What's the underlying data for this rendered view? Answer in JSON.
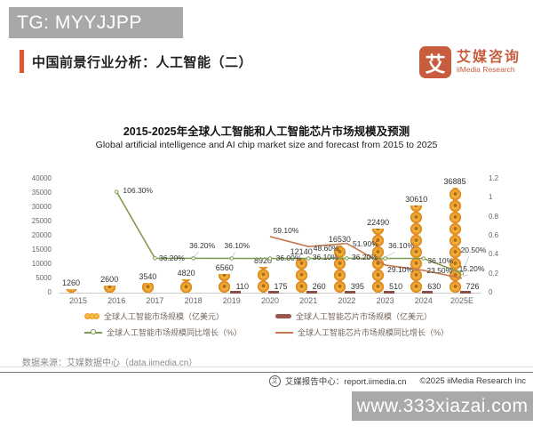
{
  "badge": {
    "text": "TG: MYYJJPP"
  },
  "header": {
    "title": "中国前景行业分析：人工智能（二）",
    "accent_color": "#e0552b",
    "logo": {
      "glyph": "艾",
      "brand_cn": "艾媒咨询",
      "brand_en": "iiMedia Research",
      "brand_color": "#c75d3e"
    }
  },
  "chart": {
    "title": "2015-2025年全球人工智能和人工智能芯片市场规模及预测",
    "subtitle": "Global artificial intelligence and AI chip market size and forecast from 2015 to 2025"
  },
  "chart_data": {
    "type": "combo: pictogram-bar + bar + 2 lines",
    "categories": [
      "2015",
      "2016",
      "2017",
      "2018",
      "2019",
      "2020",
      "2021",
      "2022",
      "2023",
      "2024",
      "2025E"
    ],
    "series": [
      {
        "name": "全球人工智能市场规模（亿美元）",
        "type": "pictogram-bar",
        "axis": "left",
        "color": "#f0a330",
        "values": [
          1260,
          2600,
          3540,
          4820,
          6560,
          8920,
          12140,
          16530,
          22490,
          30610,
          36885
        ]
      },
      {
        "name": "全球人工智能芯片市场规模（亿美元）",
        "type": "bar",
        "axis": "left",
        "color": "#8a4f47",
        "values": [
          null,
          null,
          null,
          null,
          110,
          175,
          260,
          395,
          510,
          630,
          726
        ]
      },
      {
        "name": "全球人工智能市场规模同比增长（%）",
        "type": "line",
        "axis": "right",
        "color": "#7f9c52",
        "values": [
          null,
          106.3,
          36.2,
          36.2,
          36.1,
          36.0,
          36.1,
          36.2,
          36.1,
          36.1,
          20.5
        ]
      },
      {
        "name": "全球人工智能芯片市场规模同比增长（%）",
        "type": "line",
        "axis": "right",
        "color": "#c4794f",
        "values": [
          null,
          null,
          null,
          null,
          null,
          59.1,
          48.6,
          51.9,
          29.1,
          23.5,
          15.2
        ]
      }
    ],
    "left_axis": {
      "min": 0,
      "max": 40000,
      "ticks": [
        "40000",
        "35000",
        "30000",
        "25000",
        "20000",
        "15000",
        "10000",
        "5000",
        "0"
      ]
    },
    "right_axis": {
      "min": 0,
      "max": 1.2,
      "ticks": [
        "1.2",
        "1",
        "0.8",
        "0.6",
        "0.4",
        "0.2",
        "0"
      ]
    },
    "grid": false,
    "legend_position": "bottom"
  },
  "legend": [
    {
      "label": "全球人工智能市场规模（亿美元）",
      "marker": "pictogram",
      "color": "#f0a330"
    },
    {
      "label": "全球人工智能芯片市场规模（亿美元）",
      "marker": "bar",
      "color": "#9c544c"
    },
    {
      "label": "全球人工智能市场规模同比增长（%）",
      "marker": "line-dot",
      "color": "#7f9c52"
    },
    {
      "label": "全球人工智能芯片市场规模同比增长（%）",
      "marker": "line",
      "color": "#c4794f"
    }
  ],
  "footer": {
    "source": "数据来源：艾媒数据中心（data.iimedia.cn）",
    "report": "艾媒报告中心：report.iimedia.cn",
    "copyright": "©2025  iiMedia Research  Inc",
    "watermark": "www.333xiazai.com"
  }
}
